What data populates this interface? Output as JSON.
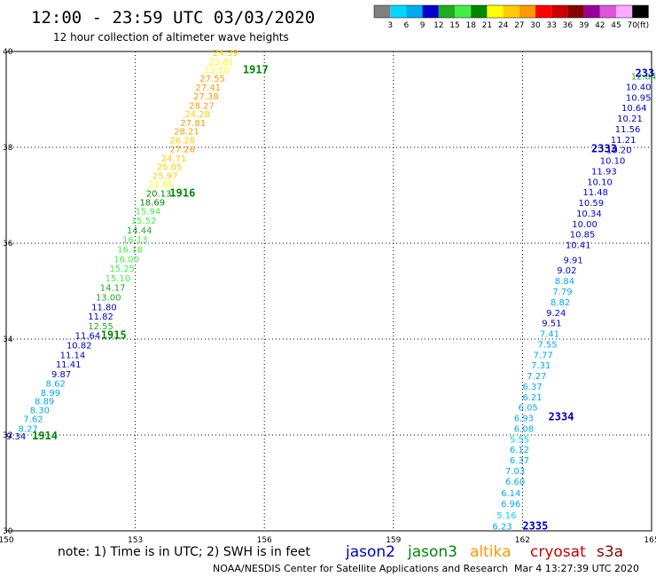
{
  "header": {
    "title": "12:00 - 23:59 UTC 03/03/2020",
    "subtitle": "12 hour collection of altimeter wave heights"
  },
  "colorbar": {
    "labels": [
      "3",
      "6",
      "9",
      "12",
      "15",
      "18",
      "21",
      "24",
      "27",
      "30",
      "33",
      "36",
      "39",
      "42",
      "45",
      "70"
    ],
    "unit": "(ft)",
    "colors": [
      "#808080",
      "#00d8ff",
      "#00aaee",
      "#0000cc",
      "#22aa22",
      "#44ee44",
      "#008800",
      "#ffff00",
      "#ffcc00",
      "#ff9900",
      "#ff0000",
      "#cc0000",
      "#880000",
      "#990099",
      "#dd55dd",
      "#ffaaff",
      "#000000"
    ]
  },
  "footer": {
    "note": "note: 1) Time is in UTC; 2) SWH is in feet",
    "credit": "NOAA/NESDIS Center for Satellite Applications and Research",
    "timestamp": "Mar  4 13:27:39 UTC 2020"
  },
  "legend": [
    {
      "name": "jason2",
      "color": "#0000cc"
    },
    {
      "name": "jason3",
      "color": "#008800"
    },
    {
      "name": "altika",
      "color": "#ff9900"
    },
    {
      "name": "cryosat",
      "color": "#cc0000"
    },
    {
      "name": "s3a",
      "color": "#880000"
    }
  ],
  "chart_data": {
    "type": "scatter",
    "xlim": [
      150,
      165
    ],
    "ylim": [
      30,
      40
    ],
    "xticks": [
      "150",
      "153",
      "156",
      "159",
      "162",
      "165"
    ],
    "yticks": [
      "30",
      "32",
      "34",
      "36",
      "38",
      "40"
    ],
    "grid": true,
    "tracks": [
      {
        "color": "#008800",
        "times": [
          {
            "label": "1914",
            "x": 150.6,
            "y": 31.98
          },
          {
            "label": "1915",
            "x": 152.2,
            "y": 34.08
          },
          {
            "label": "1916",
            "x": 153.8,
            "y": 37.05
          },
          {
            "label": "1917",
            "x": 155.5,
            "y": 39.62
          }
        ],
        "points": [
          {
            "v": "9.34",
            "x": 150.0,
            "y": 31.98
          },
          {
            "v": "8.27",
            "x": 150.28,
            "y": 32.14
          },
          {
            "v": "7.62",
            "x": 150.4,
            "y": 32.34
          },
          {
            "v": "8.30",
            "x": 150.55,
            "y": 32.53
          },
          {
            "v": "8.89",
            "x": 150.66,
            "y": 32.71
          },
          {
            "v": "8.99",
            "x": 150.8,
            "y": 32.89
          },
          {
            "v": "8.62",
            "x": 150.92,
            "y": 33.08
          },
          {
            "v": "9.87",
            "x": 151.05,
            "y": 33.28
          },
          {
            "v": "11.41",
            "x": 151.15,
            "y": 33.48
          },
          {
            "v": "11.14",
            "x": 151.25,
            "y": 33.68
          },
          {
            "v": "10.82",
            "x": 151.4,
            "y": 33.88
          },
          {
            "v": "11.64",
            "x": 151.6,
            "y": 34.08
          },
          {
            "v": "12.55",
            "x": 151.9,
            "y": 34.28
          },
          {
            "v": "11.82",
            "x": 151.9,
            "y": 34.48
          },
          {
            "v": "11.80",
            "x": 151.98,
            "y": 34.68
          },
          {
            "v": "13.00",
            "x": 152.08,
            "y": 34.88
          },
          {
            "v": "14.17",
            "x": 152.18,
            "y": 35.08
          },
          {
            "v": "15.10",
            "x": 152.3,
            "y": 35.28
          },
          {
            "v": "15.25",
            "x": 152.4,
            "y": 35.48
          },
          {
            "v": "16.00",
            "x": 152.5,
            "y": 35.68
          },
          {
            "v": "16.18",
            "x": 152.58,
            "y": 35.88
          },
          {
            "v": "16.13",
            "x": 152.7,
            "y": 36.08
          },
          {
            "v": "14.44",
            "x": 152.8,
            "y": 36.28
          },
          {
            "v": "15.52",
            "x": 152.9,
            "y": 36.48
          },
          {
            "v": "15.94",
            "x": 153.0,
            "y": 36.68
          },
          {
            "v": "18.69",
            "x": 153.1,
            "y": 36.86
          },
          {
            "v": "20.13",
            "x": 153.25,
            "y": 37.05
          },
          {
            "v": "21.65",
            "x": 153.3,
            "y": 37.24
          },
          {
            "v": "25.97",
            "x": 153.4,
            "y": 37.42
          },
          {
            "v": "25.05",
            "x": 153.5,
            "y": 37.6
          },
          {
            "v": "24.71",
            "x": 153.6,
            "y": 37.78
          },
          {
            "v": "27.26",
            "x": 153.8,
            "y": 37.97
          },
          {
            "v": "26.28",
            "x": 153.8,
            "y": 38.16
          },
          {
            "v": "28.21",
            "x": 153.9,
            "y": 38.34
          },
          {
            "v": "27.81",
            "x": 154.05,
            "y": 38.52
          },
          {
            "v": "24.28",
            "x": 154.15,
            "y": 38.7
          },
          {
            "v": "28.27",
            "x": 154.25,
            "y": 38.88
          },
          {
            "v": "27.38",
            "x": 154.35,
            "y": 39.07
          },
          {
            "v": "27.41",
            "x": 154.4,
            "y": 39.26
          },
          {
            "v": "27.55",
            "x": 154.5,
            "y": 39.44
          },
          {
            "v": "23.50",
            "x": 154.6,
            "y": 39.62
          },
          {
            "v": "23.81",
            "x": 154.7,
            "y": 39.8
          },
          {
            "v": "24.39",
            "x": 154.8,
            "y": 39.98
          }
        ]
      },
      {
        "color": "#0000cc",
        "times": [
          {
            "label": "2335",
            "x": 162.0,
            "y": 30.1
          },
          {
            "label": "2334",
            "x": 162.6,
            "y": 32.38
          },
          {
            "label": "2333",
            "x": 163.6,
            "y": 37.97
          },
          {
            "label": "233",
            "x": 164.62,
            "y": 39.55
          }
        ],
        "points": [
          {
            "v": "6.23",
            "x": 161.3,
            "y": 30.1
          },
          {
            "v": "5.16",
            "x": 161.4,
            "y": 30.33
          },
          {
            "v": "6.96",
            "x": 161.5,
            "y": 30.57
          },
          {
            "v": "6.14",
            "x": 161.5,
            "y": 30.8
          },
          {
            "v": "6.60",
            "x": 161.6,
            "y": 31.04
          },
          {
            "v": "7.03",
            "x": 161.6,
            "y": 31.26
          },
          {
            "v": "6.37",
            "x": 161.7,
            "y": 31.48
          },
          {
            "v": "6.12",
            "x": 161.7,
            "y": 31.7
          },
          {
            "v": "5.55",
            "x": 161.7,
            "y": 31.92
          },
          {
            "v": "6.08",
            "x": 161.8,
            "y": 32.14
          },
          {
            "v": "6.93",
            "x": 161.8,
            "y": 32.36
          },
          {
            "v": "6.05",
            "x": 161.9,
            "y": 32.58
          },
          {
            "v": "6.21",
            "x": 162.0,
            "y": 32.8
          },
          {
            "v": "6.37",
            "x": 162.0,
            "y": 33.02
          },
          {
            "v": "7.27",
            "x": 162.1,
            "y": 33.24
          },
          {
            "v": "7.31",
            "x": 162.2,
            "y": 33.46
          },
          {
            "v": "7.77",
            "x": 162.25,
            "y": 33.68
          },
          {
            "v": "7.55",
            "x": 162.35,
            "y": 33.9
          },
          {
            "v": "7.41",
            "x": 162.4,
            "y": 34.12
          },
          {
            "v": "9.51",
            "x": 162.45,
            "y": 34.34
          },
          {
            "v": "9.24",
            "x": 162.55,
            "y": 34.56
          },
          {
            "v": "8.82",
            "x": 162.65,
            "y": 34.78
          },
          {
            "v": "7.79",
            "x": 162.7,
            "y": 35.0
          },
          {
            "v": "8.84",
            "x": 162.75,
            "y": 35.22
          },
          {
            "v": "9.02",
            "x": 162.8,
            "y": 35.44
          },
          {
            "v": "9.91",
            "x": 162.95,
            "y": 35.66
          },
          {
            "v": "10.41",
            "x": 163.0,
            "y": 35.97
          },
          {
            "v": "10.85",
            "x": 163.1,
            "y": 36.19
          },
          {
            "v": "10.00",
            "x": 163.15,
            "y": 36.41
          },
          {
            "v": "10.34",
            "x": 163.25,
            "y": 36.63
          },
          {
            "v": "10.59",
            "x": 163.3,
            "y": 36.85
          },
          {
            "v": "11.48",
            "x": 163.4,
            "y": 37.07
          },
          {
            "v": "10.10",
            "x": 163.5,
            "y": 37.29
          },
          {
            "v": "11.93",
            "x": 163.6,
            "y": 37.51
          },
          {
            "v": "10.10",
            "x": 163.8,
            "y": 37.73
          },
          {
            "v": "10.20",
            "x": 163.95,
            "y": 37.95
          },
          {
            "v": "11.21",
            "x": 164.05,
            "y": 38.17
          },
          {
            "v": "11.56",
            "x": 164.15,
            "y": 38.39
          },
          {
            "v": "10.21",
            "x": 164.2,
            "y": 38.61
          },
          {
            "v": "10.64",
            "x": 164.3,
            "y": 38.83
          },
          {
            "v": "10.95",
            "x": 164.4,
            "y": 39.05
          },
          {
            "v": "10.40",
            "x": 164.4,
            "y": 39.27
          },
          {
            "v": "12.84",
            "x": 164.52,
            "y": 39.49
          }
        ]
      }
    ]
  }
}
